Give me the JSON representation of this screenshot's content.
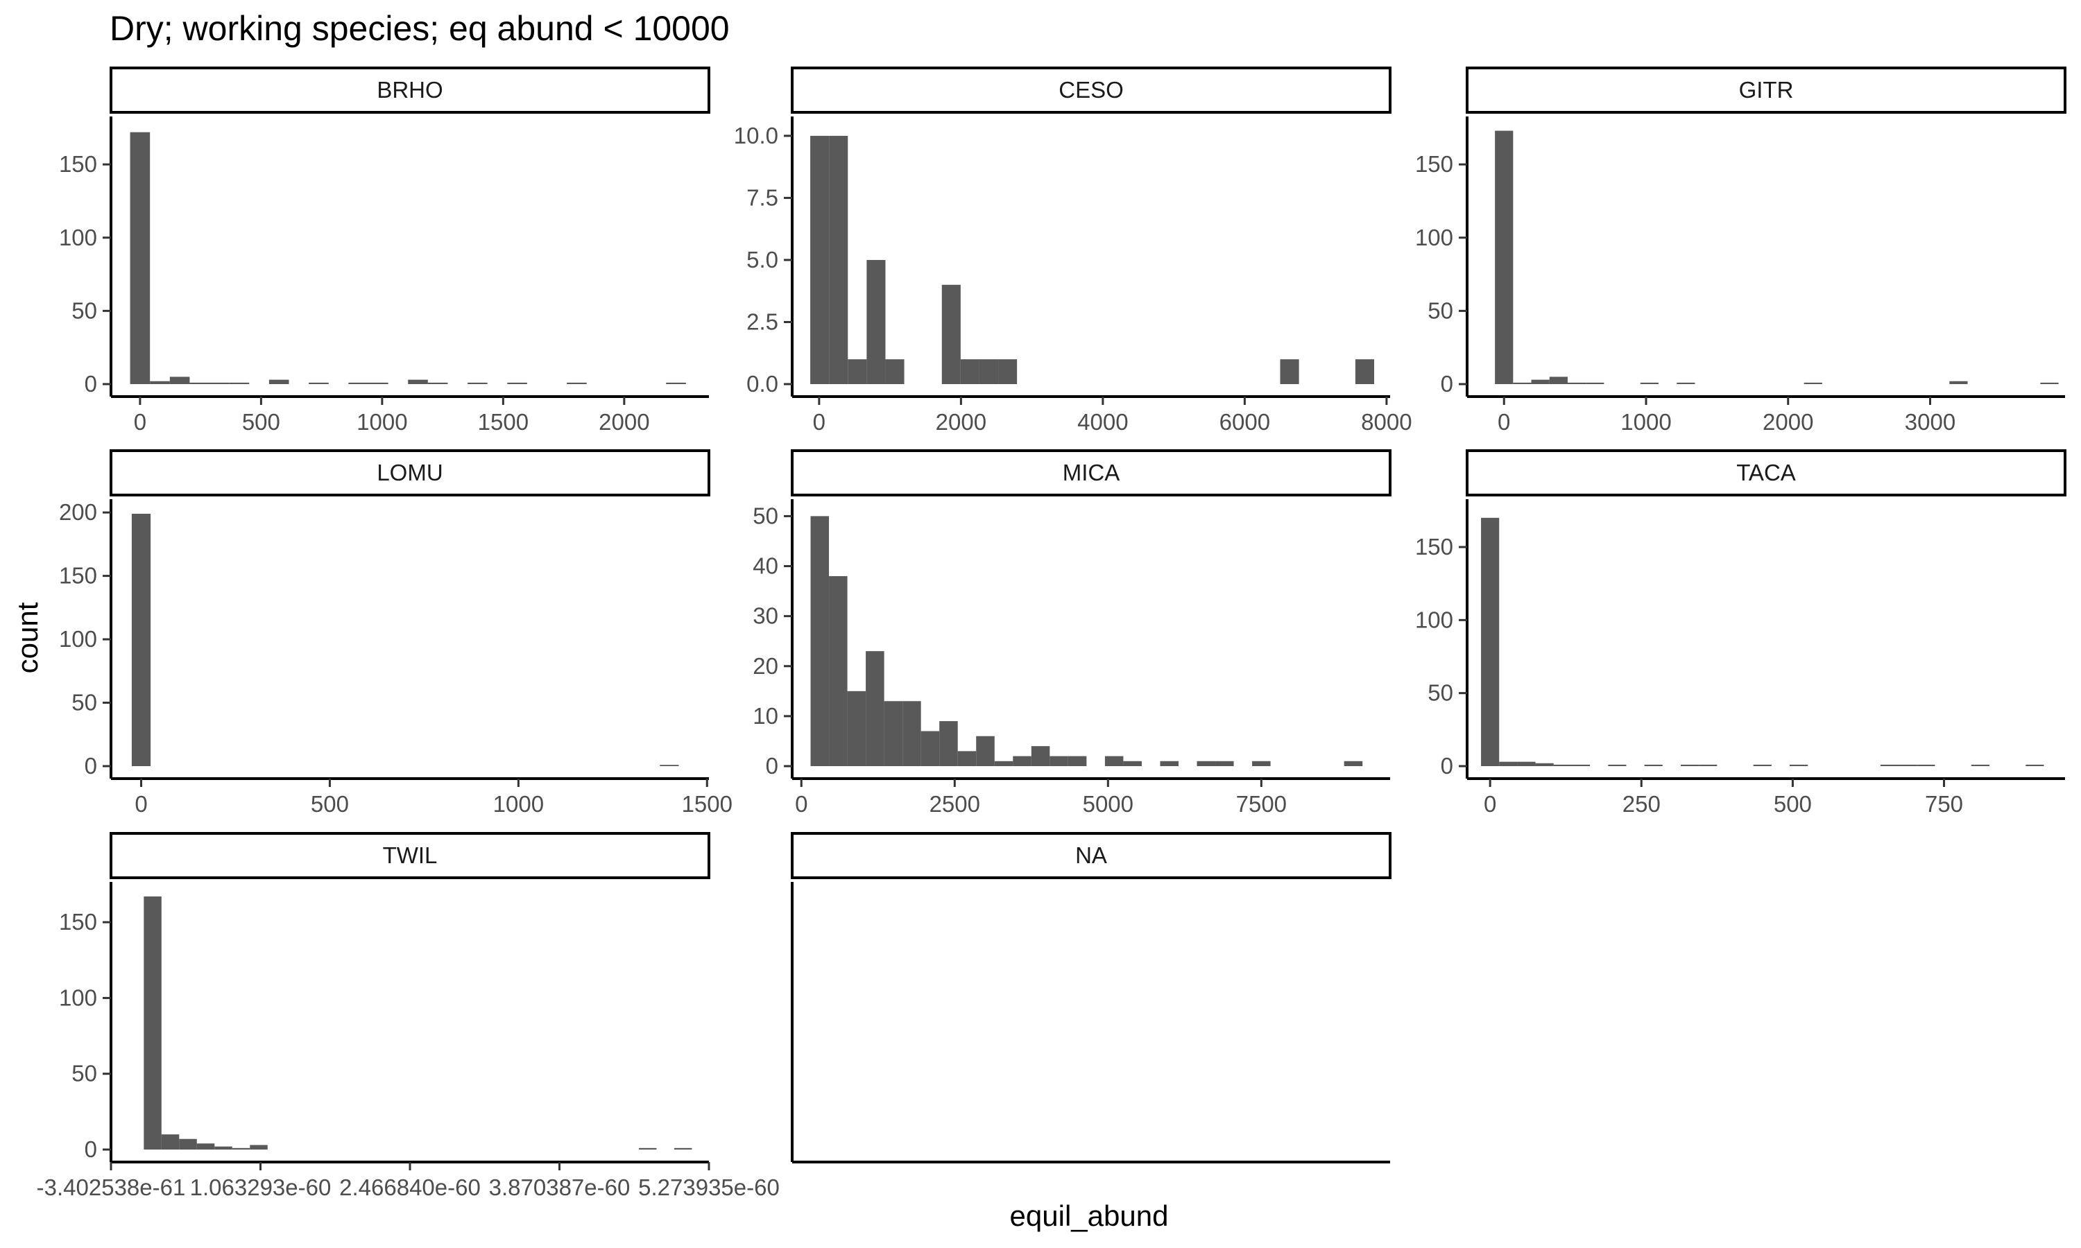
{
  "title": "Dry; working species; eq abund < 10000",
  "xlabel": "equil_abund",
  "ylabel": "count",
  "chart_data": {
    "type": "bar",
    "subtype": "faceted-histogram",
    "title": "Dry; working species; eq abund < 10000",
    "xlabel": "equil_abund",
    "ylabel": "count",
    "bar_color": "#595959",
    "facet_scales": "free",
    "facets": [
      {
        "label": "BRHO",
        "x_range": [
          -120,
          2350
        ],
        "y_range": [
          0,
          178
        ],
        "x_ticks": [
          0,
          500,
          1000,
          1500,
          2000
        ],
        "x_tick_labels": [
          "0",
          "500",
          "1000",
          "1500",
          "2000"
        ],
        "y_ticks": [
          0,
          50,
          100,
          150
        ],
        "y_tick_labels": [
          "0",
          "50",
          "100",
          "150"
        ],
        "bin_start": -41,
        "bin_width": 82,
        "counts": [
          172,
          2,
          5,
          1,
          1,
          1,
          0,
          3,
          0,
          1,
          0,
          1,
          1,
          0,
          3,
          1,
          0,
          1,
          0,
          1,
          0,
          0,
          1,
          0,
          0,
          0,
          0,
          1,
          0
        ]
      },
      {
        "label": "CESO",
        "x_range": [
          -380,
          8050
        ],
        "y_range": [
          0,
          10.5
        ],
        "x_ticks": [
          0,
          2000,
          4000,
          6000,
          8000
        ],
        "x_tick_labels": [
          "0",
          "2000",
          "4000",
          "6000",
          "8000"
        ],
        "y_ticks": [
          0,
          2.5,
          5,
          7.5,
          10
        ],
        "y_tick_labels": [
          "0.0",
          "2.5",
          "5.0",
          "7.5",
          "10.0"
        ],
        "bin_start": -125,
        "bin_width": 265,
        "counts": [
          10,
          10,
          1,
          5,
          1,
          0,
          0,
          4,
          1,
          1,
          1,
          0,
          0,
          0,
          0,
          0,
          0,
          0,
          0,
          0,
          0,
          0,
          0,
          0,
          0,
          1,
          0,
          0,
          0,
          1
        ]
      },
      {
        "label": "GITR",
        "x_range": [
          -260,
          3950
        ],
        "y_range": [
          0,
          178
        ],
        "x_ticks": [
          0,
          1000,
          2000,
          3000
        ],
        "x_tick_labels": [
          "0",
          "1000",
          "2000",
          "3000"
        ],
        "y_ticks": [
          0,
          50,
          100,
          150
        ],
        "y_tick_labels": [
          "0",
          "50",
          "100",
          "150"
        ],
        "bin_start": -64,
        "bin_width": 128,
        "counts": [
          173,
          1,
          3,
          5,
          1,
          1,
          0,
          0,
          1,
          0,
          1,
          0,
          0,
          0,
          0,
          0,
          0,
          1,
          0,
          0,
          0,
          0,
          0,
          0,
          0,
          2,
          0,
          0,
          0,
          0,
          1
        ]
      },
      {
        "label": "LOMU",
        "x_range": [
          -80,
          1505
        ],
        "y_range": [
          0,
          205
        ],
        "x_ticks": [
          0,
          500,
          1000,
          1500
        ],
        "x_tick_labels": [
          "0",
          "500",
          "1000",
          "1500"
        ],
        "y_ticks": [
          0,
          50,
          100,
          150,
          200
        ],
        "y_tick_labels": [
          "0",
          "50",
          "100",
          "150",
          "200"
        ],
        "bin_start": -25,
        "bin_width": 50,
        "counts": [
          199,
          0,
          0,
          0,
          0,
          0,
          0,
          0,
          0,
          0,
          0,
          0,
          0,
          0,
          0,
          0,
          0,
          0,
          0,
          0,
          0,
          0,
          0,
          0,
          0,
          0,
          0,
          0,
          1
        ]
      },
      {
        "label": "MICA",
        "x_range": [
          -150,
          9600
        ],
        "y_range": [
          0,
          52
        ],
        "x_ticks": [
          0,
          2500,
          5000,
          7500
        ],
        "x_tick_labels": [
          "0",
          "2500",
          "5000",
          "7500"
        ],
        "y_ticks": [
          0,
          10,
          20,
          30,
          40,
          50
        ],
        "y_tick_labels": [
          "0",
          "10",
          "20",
          "30",
          "40",
          "50"
        ],
        "bin_start": 150,
        "bin_width": 300,
        "counts": [
          50,
          38,
          15,
          23,
          13,
          13,
          7,
          9,
          3,
          6,
          1,
          2,
          4,
          2,
          2,
          0,
          2,
          1,
          0,
          1,
          0,
          1,
          1,
          0,
          1,
          0,
          0,
          0,
          0,
          1
        ]
      },
      {
        "label": "TACA",
        "x_range": [
          -38,
          950
        ],
        "y_range": [
          0,
          178
        ],
        "x_ticks": [
          0,
          250,
          500,
          750
        ],
        "x_tick_labels": [
          "0",
          "250",
          "500",
          "750"
        ],
        "y_ticks": [
          0,
          50,
          100,
          150
        ],
        "y_tick_labels": [
          "0",
          "50",
          "100",
          "150"
        ],
        "bin_start": -15,
        "bin_width": 30,
        "counts": [
          170,
          3,
          3,
          2,
          1,
          1,
          0,
          1,
          0,
          1,
          0,
          1,
          1,
          0,
          0,
          1,
          0,
          1,
          0,
          0,
          0,
          0,
          1,
          1,
          1,
          0,
          0,
          1,
          0,
          0,
          1
        ]
      },
      {
        "label": "TWIL",
        "x_range": [
          -3.402538e-61,
          5.273935e-60
        ],
        "y_range": [
          0,
          172
        ],
        "x_ticks": [
          -3.402538e-61,
          1.063293e-60,
          2.46684e-60,
          3.870387e-60,
          5.273935e-60
        ],
        "x_tick_labels": [
          "-3.402538e-61",
          "1.063293e-60",
          "2.466840e-60",
          "3.870387e-60",
          "5.273935e-60"
        ],
        "y_ticks": [
          0,
          50,
          100,
          150
        ],
        "y_tick_labels": [
          "0",
          "50",
          "100",
          "150"
        ],
        "bin_start": -3.2e-62,
        "bin_width": 1.66e-61,
        "counts": [
          167,
          10,
          7,
          4,
          2,
          1,
          3,
          0,
          0,
          0,
          0,
          0,
          0,
          0,
          0,
          0,
          0,
          0,
          0,
          0,
          0,
          0,
          0,
          0,
          0,
          0,
          0,
          0,
          1,
          0,
          1
        ]
      },
      {
        "label": "NA",
        "x_range": null,
        "y_range": null,
        "x_ticks": [],
        "x_tick_labels": [],
        "y_ticks": [],
        "y_tick_labels": [],
        "bin_start": 0,
        "bin_width": 1,
        "counts": []
      }
    ]
  }
}
